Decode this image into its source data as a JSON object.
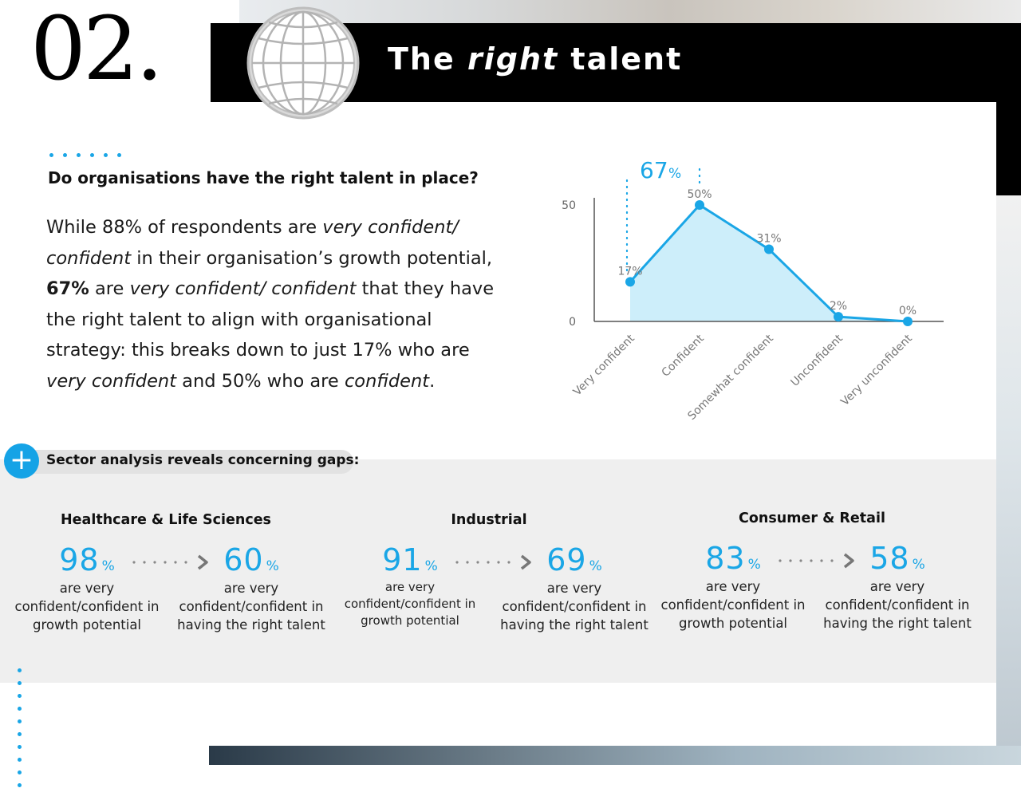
{
  "header": {
    "section_number": "02.",
    "title_pre": "The",
    "title_em": "right",
    "title_post": "talent",
    "icon": "globe-icon"
  },
  "intro": {
    "question": "Do organisations have the right talent in place?",
    "p1_a": "While 88% of respondents are ",
    "p1_b": "very confident/",
    "p1_c": "confident",
    "p1_d": " in their organisation’s growth potential,",
    "p2_a": "67%",
    "p2_b": " are ",
    "p2_c": "very confident/ confident",
    "p2_d": " that they have",
    "p3": "the right talent to align with organisational",
    "p4": "strategy: this breaks down to just 17% who are",
    "p5_a": "very confident",
    "p5_b": " and 50% who are ",
    "p5_c": "confident",
    "p5_d": "."
  },
  "chart_data": {
    "type": "area",
    "categories": [
      "Very confident",
      "Confident",
      "Somewhat confident",
      "Unconfident",
      "Very unconfident"
    ],
    "values": [
      17,
      50,
      31,
      2,
      0
    ],
    "data_labels": [
      "17%",
      "50%",
      "31%",
      "2%",
      "0%"
    ],
    "yticks": [
      "0",
      "50"
    ],
    "ylim": [
      0,
      50
    ],
    "highlight_label": "67",
    "highlight_unit": "%",
    "highlight_categories": [
      "Very confident",
      "Confident"
    ],
    "color": "#1aa6e6",
    "fill_color": "#cdeefa"
  },
  "sector_section": {
    "heading": "Sector analysis reveals concerning gaps:",
    "plus_label": "+",
    "sectors": [
      {
        "name": "Healthcare & Life Sciences",
        "growth_value": "98",
        "growth_desc_1": "are very",
        "growth_desc_2": "confident/confident in",
        "growth_desc_3": "growth potential",
        "talent_value": "60",
        "talent_desc_1": "are very",
        "talent_desc_2": "confident/confident in",
        "talent_desc_3": "having the right talent"
      },
      {
        "name": "Industrial",
        "growth_value": "91",
        "growth_desc_1": "are very",
        "growth_desc_2": "confident/confident in",
        "growth_desc_3": "growth potential",
        "talent_value": "69",
        "talent_desc_1": "are very",
        "talent_desc_2": "confident/confident in",
        "talent_desc_3": "having the right talent"
      },
      {
        "name": "Consumer & Retail",
        "growth_value": "83",
        "growth_desc_1": "are very",
        "growth_desc_2": "confident/confident in",
        "growth_desc_3": "growth potential",
        "talent_value": "58",
        "talent_desc_1": "are very",
        "talent_desc_2": "confident/confident in",
        "talent_desc_3": "having the right talent"
      }
    ],
    "percent_sign": "%"
  },
  "colors": {
    "accent": "#1aa6e6",
    "black": "#000000",
    "gray_band": "#efefef"
  }
}
